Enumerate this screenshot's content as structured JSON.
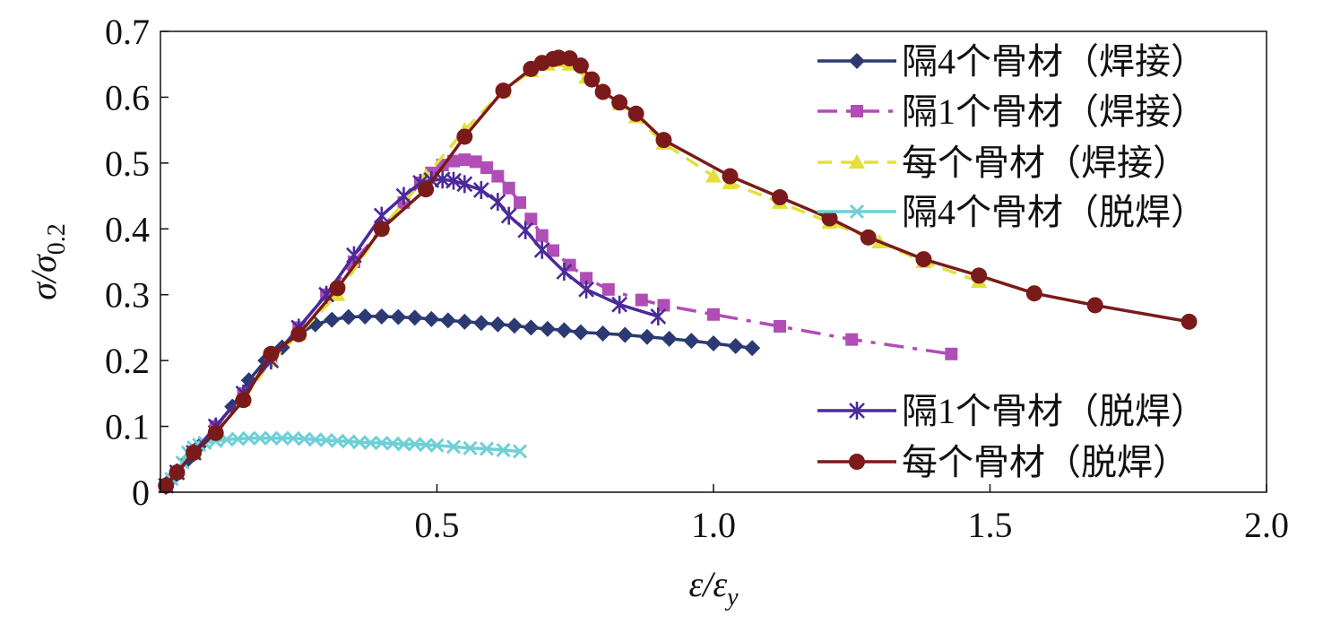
{
  "chart_data": {
    "type": "line",
    "xlabel": {
      "main": "ε/ε",
      "sub": "y"
    },
    "ylabel": {
      "main": "σ/σ",
      "sub": "0.2"
    },
    "xlim": [
      0,
      2.0
    ],
    "ylim": [
      0,
      0.7
    ],
    "xticks": [
      0.5,
      1.0,
      1.5,
      2.0
    ],
    "xtick_labels": [
      "0.5",
      "1.0",
      "1.5",
      "2.0"
    ],
    "yticks": [
      0,
      0.1,
      0.2,
      0.3,
      0.4,
      0.5,
      0.6,
      0.7
    ],
    "ytick_labels": [
      "0",
      "0.1",
      "0.2",
      "0.3",
      "0.4",
      "0.5",
      "0.6",
      "0.7"
    ],
    "grid": false,
    "legend_position": "right",
    "series": [
      {
        "name": "隔4个骨材（焊接）",
        "color": "#2B3A73",
        "marker": "diamond",
        "dash": "solid",
        "x": [
          0.01,
          0.02,
          0.03,
          0.05,
          0.07,
          0.1,
          0.13,
          0.16,
          0.19,
          0.22,
          0.25,
          0.28,
          0.31,
          0.34,
          0.37,
          0.4,
          0.43,
          0.46,
          0.49,
          0.52,
          0.55,
          0.58,
          0.61,
          0.64,
          0.67,
          0.7,
          0.73,
          0.76,
          0.8,
          0.84,
          0.88,
          0.92,
          0.96,
          1.0,
          1.04,
          1.07
        ],
        "y": [
          0.01,
          0.02,
          0.03,
          0.05,
          0.07,
          0.1,
          0.13,
          0.17,
          0.2,
          0.22,
          0.24,
          0.255,
          0.262,
          0.266,
          0.267,
          0.267,
          0.266,
          0.265,
          0.263,
          0.261,
          0.259,
          0.257,
          0.255,
          0.253,
          0.25,
          0.248,
          0.246,
          0.243,
          0.241,
          0.239,
          0.236,
          0.233,
          0.23,
          0.226,
          0.222,
          0.219
        ]
      },
      {
        "name": "隔1个骨材（焊接）",
        "color": "#B04DB6",
        "marker": "square",
        "dash": "dashdot",
        "x": [
          0.01,
          0.03,
          0.06,
          0.1,
          0.15,
          0.2,
          0.25,
          0.3,
          0.35,
          0.4,
          0.44,
          0.47,
          0.49,
          0.51,
          0.53,
          0.55,
          0.57,
          0.59,
          0.61,
          0.63,
          0.65,
          0.67,
          0.69,
          0.71,
          0.74,
          0.77,
          0.81,
          0.87,
          0.91,
          1.0,
          1.12,
          1.25,
          1.43
        ],
        "y": [
          0.01,
          0.03,
          0.06,
          0.1,
          0.15,
          0.2,
          0.25,
          0.3,
          0.35,
          0.4,
          0.44,
          0.47,
          0.485,
          0.497,
          0.503,
          0.505,
          0.502,
          0.493,
          0.48,
          0.462,
          0.44,
          0.415,
          0.39,
          0.367,
          0.345,
          0.325,
          0.308,
          0.292,
          0.284,
          0.27,
          0.252,
          0.232,
          0.21
        ]
      },
      {
        "name": "每个骨材（焊接）",
        "color": "#E2E03A",
        "marker": "triangle",
        "dash": "dash",
        "x": [
          0.01,
          0.03,
          0.06,
          0.1,
          0.15,
          0.2,
          0.25,
          0.32,
          0.4,
          0.48,
          0.55,
          0.62,
          0.67,
          0.7,
          0.72,
          0.74,
          0.77,
          0.8,
          0.83,
          0.86,
          0.91,
          1.0,
          1.03,
          1.12,
          1.21,
          1.3,
          1.38,
          1.48
        ],
        "y": [
          0.01,
          0.03,
          0.06,
          0.09,
          0.14,
          0.2,
          0.24,
          0.3,
          0.4,
          0.48,
          0.55,
          0.61,
          0.64,
          0.65,
          0.655,
          0.65,
          0.63,
          0.61,
          0.59,
          0.57,
          0.53,
          0.48,
          0.47,
          0.44,
          0.41,
          0.38,
          0.35,
          0.32
        ]
      },
      {
        "name": "隔4个骨材（脱焊）",
        "color": "#6ED0D6",
        "marker": "x",
        "dash": "solid",
        "x": [
          0.01,
          0.02,
          0.03,
          0.04,
          0.05,
          0.06,
          0.07,
          0.08,
          0.1,
          0.12,
          0.14,
          0.16,
          0.18,
          0.2,
          0.22,
          0.24,
          0.26,
          0.28,
          0.3,
          0.32,
          0.34,
          0.36,
          0.38,
          0.4,
          0.42,
          0.44,
          0.46,
          0.48,
          0.5,
          0.53,
          0.56,
          0.59,
          0.62,
          0.65
        ],
        "y": [
          0.01,
          0.02,
          0.03,
          0.045,
          0.06,
          0.068,
          0.072,
          0.075,
          0.078,
          0.08,
          0.081,
          0.082,
          0.082,
          0.082,
          0.082,
          0.082,
          0.081,
          0.08,
          0.079,
          0.078,
          0.077,
          0.076,
          0.075,
          0.075,
          0.074,
          0.073,
          0.073,
          0.072,
          0.071,
          0.069,
          0.067,
          0.066,
          0.064,
          0.062
        ]
      },
      {
        "name": "隔1个骨材（脱焊）",
        "color": "#4B2A9A",
        "marker": "star",
        "dash": "solid",
        "x": [
          0.01,
          0.03,
          0.06,
          0.1,
          0.15,
          0.2,
          0.25,
          0.3,
          0.35,
          0.4,
          0.44,
          0.47,
          0.49,
          0.51,
          0.53,
          0.55,
          0.58,
          0.61,
          0.63,
          0.66,
          0.69,
          0.73,
          0.77,
          0.83,
          0.9
        ],
        "y": [
          0.01,
          0.03,
          0.06,
          0.1,
          0.15,
          0.2,
          0.25,
          0.3,
          0.36,
          0.42,
          0.45,
          0.47,
          0.474,
          0.475,
          0.473,
          0.468,
          0.459,
          0.441,
          0.42,
          0.398,
          0.368,
          0.335,
          0.308,
          0.285,
          0.267
        ]
      },
      {
        "name": "每个骨材（脱焊）",
        "color": "#7A1A1A",
        "marker": "circle",
        "dash": "solid",
        "x": [
          0.01,
          0.03,
          0.06,
          0.1,
          0.15,
          0.2,
          0.25,
          0.32,
          0.4,
          0.48,
          0.55,
          0.62,
          0.67,
          0.69,
          0.71,
          0.72,
          0.74,
          0.76,
          0.78,
          0.8,
          0.83,
          0.86,
          0.91,
          1.03,
          1.12,
          1.21,
          1.28,
          1.38,
          1.48,
          1.58,
          1.69,
          1.86
        ],
        "y": [
          0.01,
          0.03,
          0.06,
          0.09,
          0.14,
          0.21,
          0.24,
          0.31,
          0.4,
          0.46,
          0.54,
          0.61,
          0.643,
          0.652,
          0.658,
          0.66,
          0.659,
          0.648,
          0.627,
          0.608,
          0.592,
          0.575,
          0.535,
          0.48,
          0.448,
          0.416,
          0.387,
          0.354,
          0.329,
          0.302,
          0.284,
          0.259
        ]
      }
    ]
  }
}
